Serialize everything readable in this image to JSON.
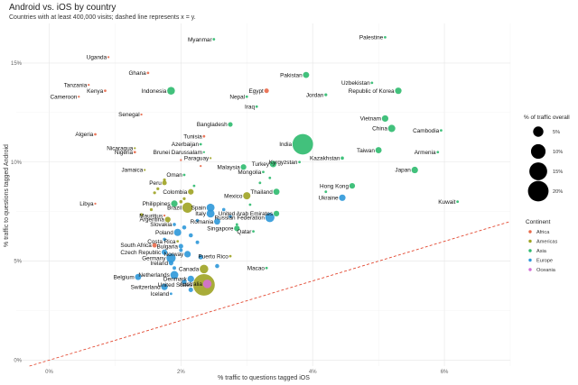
{
  "chart_data": {
    "type": "scatter",
    "title": "Android vs. iOS by country",
    "subtitle": "Countries with at least 400,000 visits; dashed line represents x = y.",
    "xlabel": "% traffic to questions tagged iOS",
    "ylabel": "% traffic to questions tagged Android",
    "xlim": [
      -0.5,
      7.0
    ],
    "ylim": [
      -0.3,
      17.0
    ],
    "x_ticks": [
      {
        "value": 0,
        "label": "0%"
      },
      {
        "value": 2,
        "label": "2%"
      },
      {
        "value": 4,
        "label": "4%"
      },
      {
        "value": 6,
        "label": "6%"
      }
    ],
    "y_ticks": [
      {
        "value": 0,
        "label": "0%"
      },
      {
        "value": 5,
        "label": "5%"
      },
      {
        "value": 10,
        "label": "10%"
      },
      {
        "value": 15,
        "label": "15%"
      }
    ],
    "grid": true,
    "reference_line": "x = y",
    "legend_size": {
      "title": "% of traffic overall",
      "entries": [
        {
          "value": 5,
          "label": "5%"
        },
        {
          "value": 10,
          "label": "10%"
        },
        {
          "value": 15,
          "label": "15%"
        },
        {
          "value": 20,
          "label": "20%"
        }
      ]
    },
    "legend_color": {
      "title": "Continent",
      "entries": [
        {
          "name": "Africa",
          "color": "#e8694a"
        },
        {
          "name": "Americas",
          "color": "#9ea324"
        },
        {
          "name": "Asia",
          "color": "#2dba6e"
        },
        {
          "name": "Europe",
          "color": "#2e98d9"
        },
        {
          "name": "Oceania",
          "color": "#d46fd6"
        }
      ]
    },
    "points": [
      {
        "label": "Palestine",
        "x": 5.1,
        "y": 16.3,
        "continent": "Asia",
        "size": 0.3
      },
      {
        "label": "Myanmar",
        "x": 2.5,
        "y": 16.2,
        "continent": "Asia",
        "size": 0.3
      },
      {
        "label": "Uganda",
        "x": 0.9,
        "y": 15.3,
        "continent": "Africa",
        "size": 0.2
      },
      {
        "label": "Ghana",
        "x": 1.5,
        "y": 14.5,
        "continent": "Africa",
        "size": 0.3
      },
      {
        "label": "Pakistan",
        "x": 3.9,
        "y": 14.4,
        "continent": "Asia",
        "size": 1.8
      },
      {
        "label": "Uzbekistan",
        "x": 4.9,
        "y": 14.0,
        "continent": "Asia",
        "size": 0.3
      },
      {
        "label": "Tanzania",
        "x": 0.6,
        "y": 13.9,
        "continent": "Africa",
        "size": 0.2
      },
      {
        "label": "Kenya",
        "x": 0.85,
        "y": 13.6,
        "continent": "Africa",
        "size": 0.3
      },
      {
        "label": "Indonesia",
        "x": 1.85,
        "y": 13.6,
        "continent": "Asia",
        "size": 2.8
      },
      {
        "label": "Egypt",
        "x": 3.3,
        "y": 13.6,
        "continent": "Africa",
        "size": 1.0
      },
      {
        "label": "Republic of Korea",
        "x": 5.3,
        "y": 13.6,
        "continent": "Asia",
        "size": 2.0
      },
      {
        "label": "Cameroon",
        "x": 0.45,
        "y": 13.3,
        "continent": "Africa",
        "size": 0.2
      },
      {
        "label": "Nepal",
        "x": 3.0,
        "y": 13.3,
        "continent": "Asia",
        "size": 0.3
      },
      {
        "label": "Jordan",
        "x": 4.2,
        "y": 13.4,
        "continent": "Asia",
        "size": 0.4
      },
      {
        "label": "Iraq",
        "x": 3.15,
        "y": 12.8,
        "continent": "Asia",
        "size": 0.3
      },
      {
        "label": "Senegal",
        "x": 1.4,
        "y": 12.4,
        "continent": "Africa",
        "size": 0.2
      },
      {
        "label": "Vietnam",
        "x": 5.1,
        "y": 12.2,
        "continent": "Asia",
        "size": 2.0
      },
      {
        "label": "Bangladesh",
        "x": 2.75,
        "y": 11.9,
        "continent": "Asia",
        "size": 1.0
      },
      {
        "label": "China",
        "x": 5.2,
        "y": 11.7,
        "continent": "Asia",
        "size": 2.5
      },
      {
        "label": "Cambodia",
        "x": 5.95,
        "y": 11.6,
        "continent": "Asia",
        "size": 0.3
      },
      {
        "label": "Algeria",
        "x": 0.7,
        "y": 11.4,
        "continent": "Africa",
        "size": 0.3
      },
      {
        "label": "Tunisia",
        "x": 2.35,
        "y": 11.3,
        "continent": "Africa",
        "size": 0.3
      },
      {
        "label": "India",
        "x": 3.85,
        "y": 10.9,
        "continent": "Asia",
        "size": 20
      },
      {
        "label": "Azerbaijan",
        "x": 2.3,
        "y": 10.9,
        "continent": "Asia",
        "size": 0.3
      },
      {
        "label": "Nicaragua",
        "x": 1.3,
        "y": 10.7,
        "continent": "Americas",
        "size": 0.2
      },
      {
        "label": "Taiwan",
        "x": 5.0,
        "y": 10.6,
        "continent": "Asia",
        "size": 1.8
      },
      {
        "label": "Armenia",
        "x": 5.9,
        "y": 10.5,
        "continent": "Asia",
        "size": 0.3
      },
      {
        "label": "Nigeria",
        "x": 1.3,
        "y": 10.5,
        "continent": "Africa",
        "size": 0.3
      },
      {
        "label": "Brunei Darussalam",
        "x": 2.35,
        "y": 10.5,
        "continent": "Asia",
        "size": 0.2
      },
      {
        "label": "Kazakhstan",
        "x": 4.45,
        "y": 10.2,
        "continent": "Asia",
        "size": 0.5
      },
      {
        "label": "Paraguay",
        "x": 2.45,
        "y": 10.2,
        "continent": "Americas",
        "size": 0.2
      },
      {
        "label": "Kyrgyzstan",
        "x": 3.8,
        "y": 10.0,
        "continent": "Asia",
        "size": 0.3
      },
      {
        "label": "Turkey",
        "x": 3.4,
        "y": 9.9,
        "continent": "Asia",
        "size": 2.0
      },
      {
        "label": "Malaysia",
        "x": 2.95,
        "y": 9.75,
        "continent": "Asia",
        "size": 1.5
      },
      {
        "label": "Japan",
        "x": 5.55,
        "y": 9.6,
        "continent": "Asia",
        "size": 2.0
      },
      {
        "label": "Jamaica",
        "x": 1.45,
        "y": 9.6,
        "continent": "Americas",
        "size": 0.2
      },
      {
        "label": "Mongolia",
        "x": 3.25,
        "y": 9.5,
        "continent": "Asia",
        "size": 0.3
      },
      {
        "label": "Oman",
        "x": 2.05,
        "y": 9.35,
        "continent": "Asia",
        "size": 0.3
      },
      {
        "label": "Peru",
        "x": 1.75,
        "y": 8.95,
        "continent": "Americas",
        "size": 1.0
      },
      {
        "label": "Hong Kong",
        "x": 4.6,
        "y": 8.8,
        "continent": "Asia",
        "size": 1.5
      },
      {
        "label": "Thailand",
        "x": 3.45,
        "y": 8.5,
        "continent": "Asia",
        "size": 1.8
      },
      {
        "label": "Colombia",
        "x": 2.15,
        "y": 8.5,
        "continent": "Americas",
        "size": 1.5
      },
      {
        "label": "Mexico",
        "x": 3.0,
        "y": 8.3,
        "continent": "Americas",
        "size": 2.5
      },
      {
        "label": "Ukraine",
        "x": 4.45,
        "y": 8.2,
        "continent": "Europe",
        "size": 2.0
      },
      {
        "label": "Kuwait",
        "x": 6.2,
        "y": 8.0,
        "continent": "Asia",
        "size": 0.3
      },
      {
        "label": "Libya",
        "x": 0.7,
        "y": 7.9,
        "continent": "Africa",
        "size": 0.2
      },
      {
        "label": "Philippines",
        "x": 1.9,
        "y": 7.9,
        "continent": "Asia",
        "size": 2.0
      },
      {
        "label": "Brazil",
        "x": 2.1,
        "y": 7.7,
        "continent": "Americas",
        "size": 5.0
      },
      {
        "label": "Spain",
        "x": 2.45,
        "y": 7.7,
        "continent": "Europe",
        "size": 3.0
      },
      {
        "label": "United Arab Emirates",
        "x": 3.45,
        "y": 7.4,
        "continent": "Asia",
        "size": 1.5
      },
      {
        "label": "Italy",
        "x": 2.45,
        "y": 7.4,
        "continent": "Europe",
        "size": 3.0
      },
      {
        "label": "Russian Federation",
        "x": 3.35,
        "y": 7.2,
        "continent": "Europe",
        "size": 4.0
      },
      {
        "label": "Mauritius",
        "x": 1.75,
        "y": 7.3,
        "continent": "Africa",
        "size": 0.2
      },
      {
        "label": "Argentina",
        "x": 1.8,
        "y": 7.1,
        "continent": "Americas",
        "size": 1.5
      },
      {
        "label": "Romania",
        "x": 2.55,
        "y": 7.0,
        "continent": "Europe",
        "size": 1.8
      },
      {
        "label": "Slovakia",
        "x": 1.9,
        "y": 6.85,
        "continent": "Europe",
        "size": 0.5
      },
      {
        "label": "Singapore",
        "x": 2.85,
        "y": 6.65,
        "continent": "Asia",
        "size": 1.5
      },
      {
        "label": "Poland",
        "x": 1.95,
        "y": 6.45,
        "continent": "Europe",
        "size": 2.5
      },
      {
        "label": "Qatar",
        "x": 3.1,
        "y": 6.5,
        "continent": "Asia",
        "size": 0.3
      },
      {
        "label": "Costa Rica",
        "x": 1.95,
        "y": 6.0,
        "continent": "Americas",
        "size": 0.3
      },
      {
        "label": "South Africa",
        "x": 1.6,
        "y": 5.8,
        "continent": "Africa",
        "size": 1.0
      },
      {
        "label": "Bulgaria",
        "x": 2.0,
        "y": 5.75,
        "continent": "Europe",
        "size": 1.0
      },
      {
        "label": "Czech Republic",
        "x": 1.75,
        "y": 5.45,
        "continent": "Europe",
        "size": 1.5
      },
      {
        "label": "Norway",
        "x": 2.1,
        "y": 5.35,
        "continent": "Europe",
        "size": 2.0
      },
      {
        "label": "Germany",
        "x": 1.85,
        "y": 5.15,
        "continent": "Europe",
        "size": 4.0
      },
      {
        "label": "Puerto Rico",
        "x": 2.75,
        "y": 5.25,
        "continent": "Americas",
        "size": 0.3
      },
      {
        "label": "Ireland",
        "x": 1.85,
        "y": 4.9,
        "continent": "Europe",
        "size": 1.0
      },
      {
        "label": "Macao",
        "x": 3.3,
        "y": 4.65,
        "continent": "Asia",
        "size": 0.3
      },
      {
        "label": "Canada",
        "x": 2.35,
        "y": 4.6,
        "continent": "Americas",
        "size": 3.5
      },
      {
        "label": "Netherlands",
        "x": 1.9,
        "y": 4.3,
        "continent": "Europe",
        "size": 3.0
      },
      {
        "label": "Belgium",
        "x": 1.35,
        "y": 4.2,
        "continent": "Europe",
        "size": 1.8
      },
      {
        "label": "Denmark",
        "x": 2.15,
        "y": 4.1,
        "continent": "Europe",
        "size": 2.0
      },
      {
        "label": "Australia",
        "x": 2.4,
        "y": 3.85,
        "continent": "Oceania",
        "size": 3.5
      },
      {
        "label": "United States",
        "x": 2.35,
        "y": 3.8,
        "continent": "Americas",
        "size": 22
      },
      {
        "label": "Switzerland",
        "x": 1.75,
        "y": 3.7,
        "continent": "Europe",
        "size": 2.0
      },
      {
        "label": "Iceland",
        "x": 1.85,
        "y": 3.35,
        "continent": "Europe",
        "size": 0.3
      }
    ],
    "unlabeled_points": [
      {
        "x": 1.75,
        "y": 9.1,
        "continent": "Americas",
        "size": 0.4
      },
      {
        "x": 1.65,
        "y": 8.65,
        "continent": "Americas",
        "size": 0.4
      },
      {
        "x": 1.6,
        "y": 8.45,
        "continent": "Americas",
        "size": 0.4
      },
      {
        "x": 2.05,
        "y": 8.15,
        "continent": "Americas",
        "size": 0.4
      },
      {
        "x": 2.0,
        "y": 8.0,
        "continent": "Americas",
        "size": 0.5
      },
      {
        "x": 1.55,
        "y": 7.6,
        "continent": "Americas",
        "size": 0.4
      },
      {
        "x": 1.4,
        "y": 7.35,
        "continent": "Americas",
        "size": 0.4
      },
      {
        "x": 2.65,
        "y": 7.6,
        "continent": "Europe",
        "size": 0.5
      },
      {
        "x": 2.75,
        "y": 7.25,
        "continent": "Europe",
        "size": 0.5
      },
      {
        "x": 2.25,
        "y": 7.05,
        "continent": "Europe",
        "size": 0.5
      },
      {
        "x": 2.05,
        "y": 6.7,
        "continent": "Europe",
        "size": 0.8
      },
      {
        "x": 2.15,
        "y": 6.3,
        "continent": "Europe",
        "size": 0.8
      },
      {
        "x": 1.75,
        "y": 6.1,
        "continent": "Europe",
        "size": 0.5
      },
      {
        "x": 2.25,
        "y": 5.95,
        "continent": "Europe",
        "size": 0.6
      },
      {
        "x": 2.0,
        "y": 5.55,
        "continent": "Europe",
        "size": 0.6
      },
      {
        "x": 2.3,
        "y": 5.2,
        "continent": "Europe",
        "size": 1.0
      },
      {
        "x": 1.9,
        "y": 4.65,
        "continent": "Europe",
        "size": 0.6
      },
      {
        "x": 2.55,
        "y": 4.75,
        "continent": "Europe",
        "size": 0.8
      },
      {
        "x": 2.05,
        "y": 3.95,
        "continent": "Europe",
        "size": 1.0
      },
      {
        "x": 2.15,
        "y": 3.55,
        "continent": "Europe",
        "size": 1.0
      },
      {
        "x": 3.35,
        "y": 9.2,
        "continent": "Asia",
        "size": 0.3
      },
      {
        "x": 3.2,
        "y": 8.95,
        "continent": "Asia",
        "size": 0.3
      },
      {
        "x": 2.2,
        "y": 8.8,
        "continent": "Asia",
        "size": 0.3
      },
      {
        "x": 4.2,
        "y": 8.5,
        "continent": "Asia",
        "size": 0.3
      },
      {
        "x": 3.05,
        "y": 7.85,
        "continent": "Asia",
        "size": 0.3
      },
      {
        "x": 2.85,
        "y": 6.85,
        "continent": "Asia",
        "size": 0.3
      },
      {
        "x": 2.3,
        "y": 9.8,
        "continent": "Africa",
        "size": 0.2
      },
      {
        "x": 2.0,
        "y": 10.1,
        "continent": "Africa",
        "size": 0.2
      }
    ]
  }
}
